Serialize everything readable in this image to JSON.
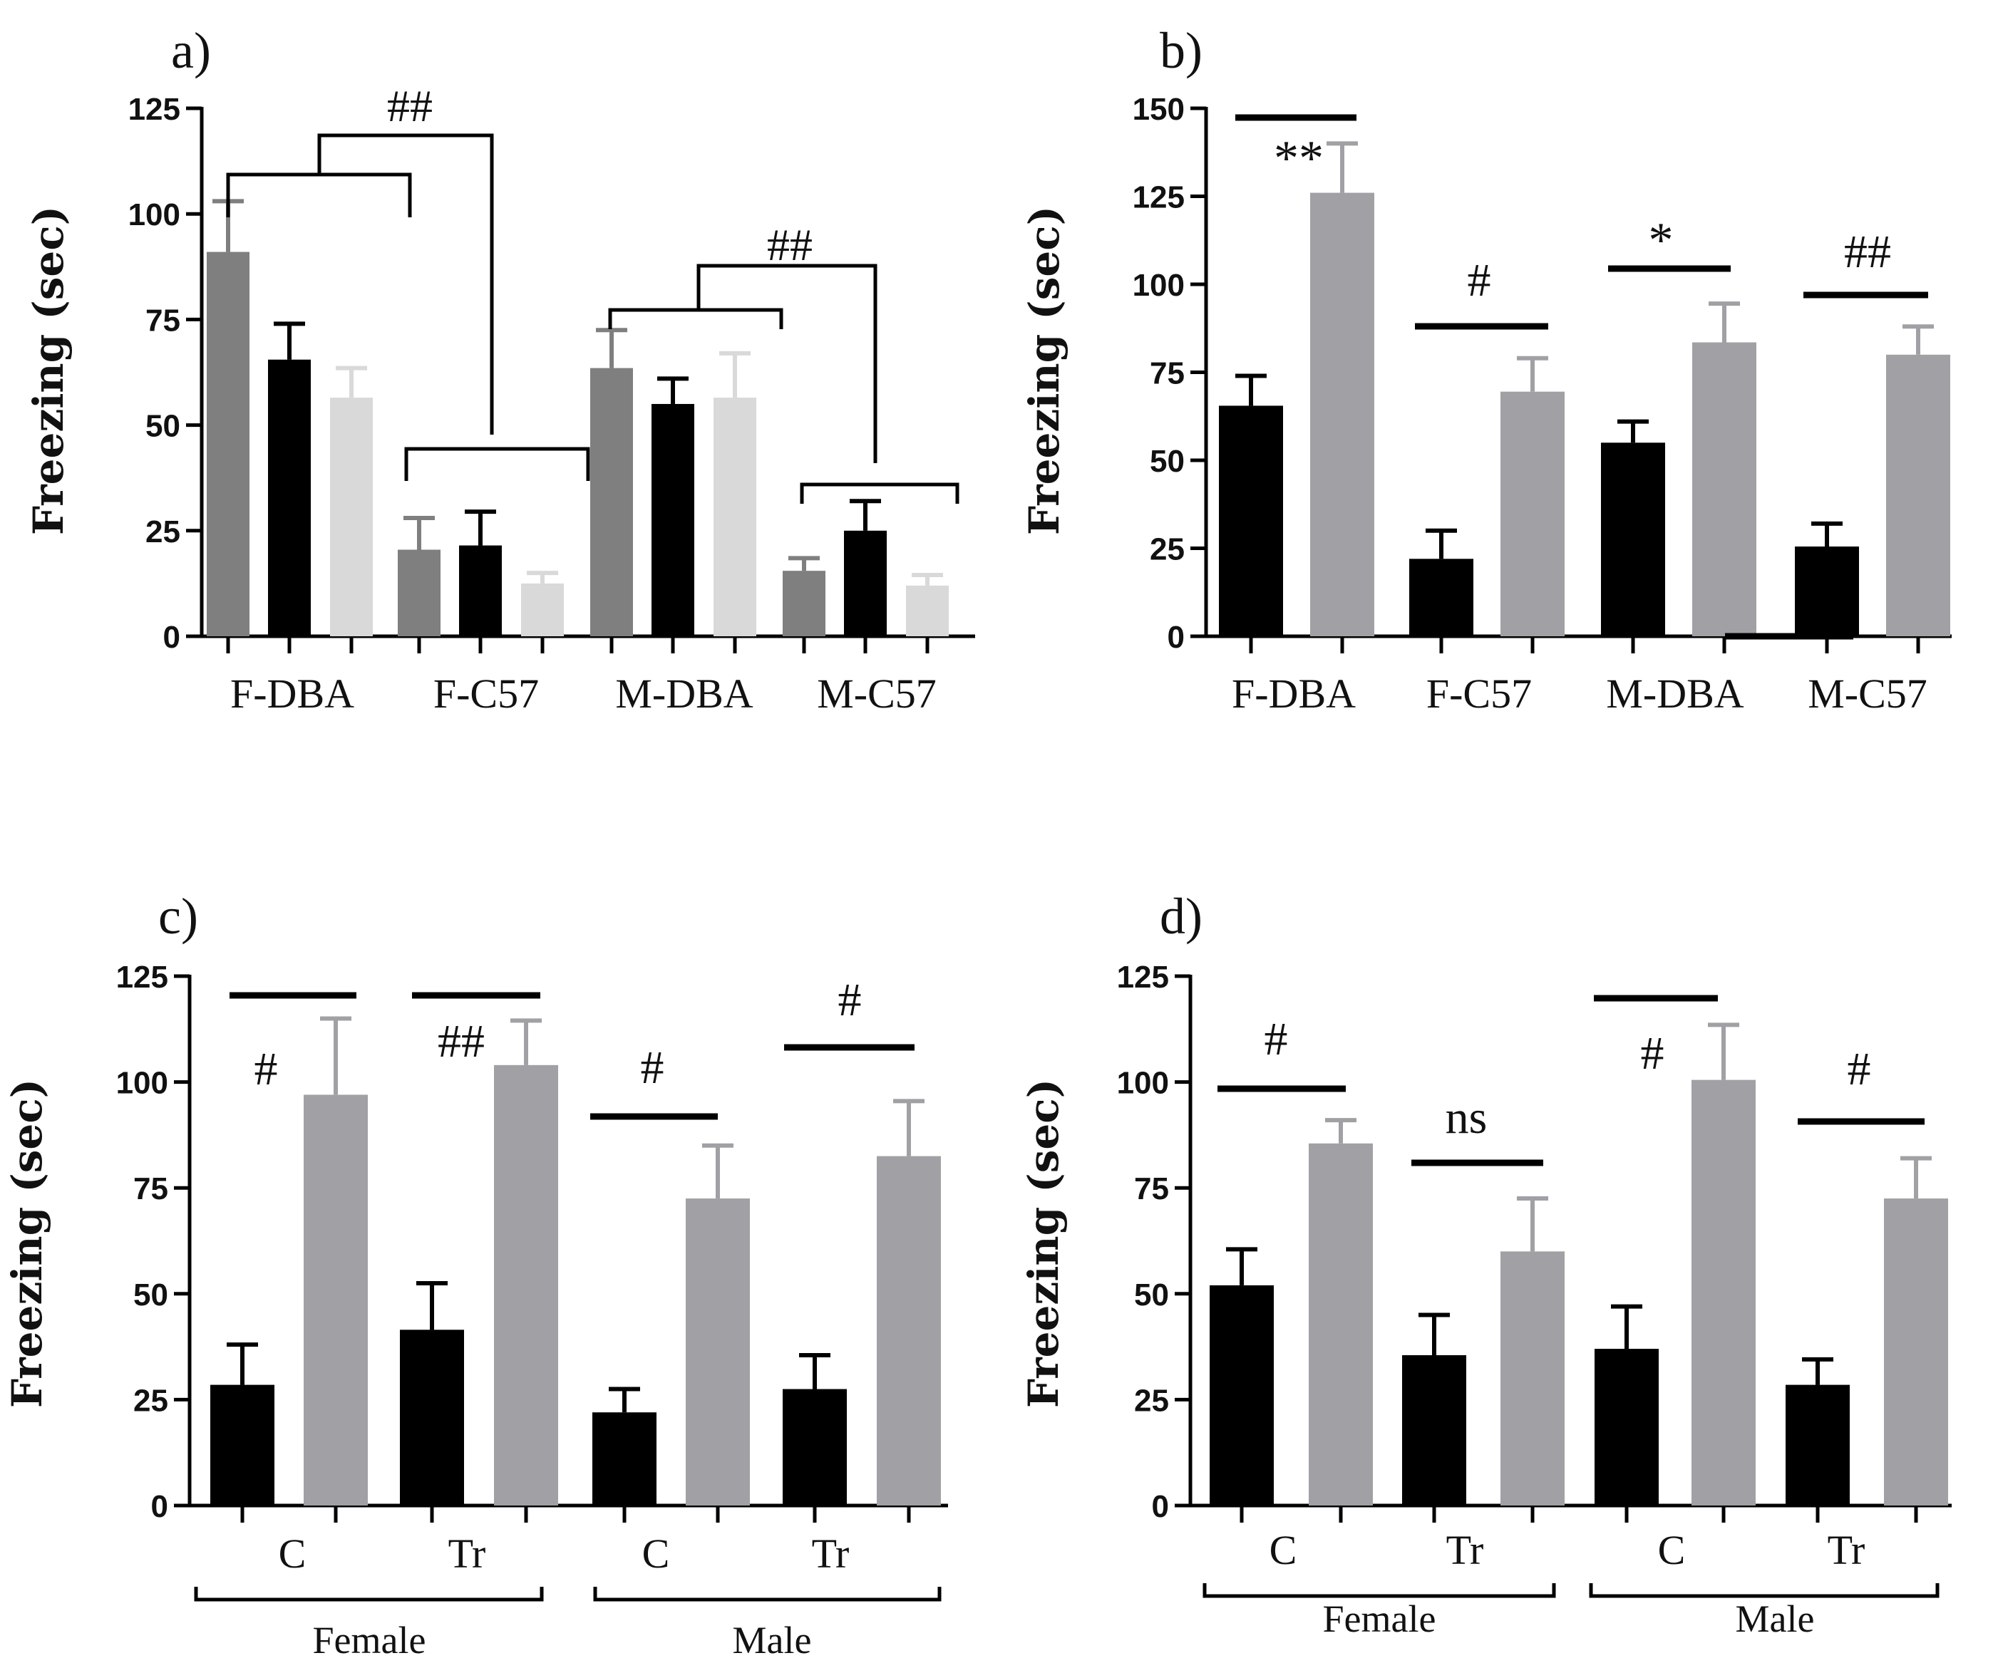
{
  "colors": {
    "black": "#000000",
    "gray": "#a1a0a5",
    "dark_gray": "#7f7f7f",
    "light_gray": "#d9d9d9"
  },
  "chart_data": [
    {
      "panel": "a)",
      "type": "bar",
      "ylabel": "Freezing (sec)",
      "ylim": [
        0,
        125
      ],
      "yticks": [
        0,
        25,
        50,
        75,
        100,
        125
      ],
      "categories": [
        "F-DBA",
        "F-C57",
        "M-DBA",
        "M-C57"
      ],
      "series": [
        {
          "name": "series-1",
          "color": "dark_gray",
          "values": [
            91,
            20.5,
            63.5,
            15.5
          ],
          "errors": [
            12,
            7.5,
            9,
            3
          ]
        },
        {
          "name": "series-2",
          "color": "black",
          "values": [
            65.5,
            21.5,
            55,
            25
          ],
          "errors": [
            8.5,
            8,
            6,
            7
          ]
        },
        {
          "name": "series-3",
          "color": "light_gray",
          "values": [
            56.5,
            12.5,
            56.5,
            12
          ],
          "errors": [
            7,
            2.5,
            10.5,
            2.5
          ]
        }
      ],
      "annotations": [
        "##",
        "##"
      ]
    },
    {
      "panel": "b)",
      "type": "bar",
      "ylabel": "Freezing (sec)",
      "ylim": [
        0,
        150
      ],
      "yticks": [
        0,
        25,
        50,
        75,
        100,
        125,
        150
      ],
      "categories": [
        "F-DBA",
        "F-C57",
        "M-DBA",
        "M-C57"
      ],
      "series": [
        {
          "name": "series-1",
          "color": "black",
          "values": [
            65.5,
            22,
            55,
            25.5
          ],
          "errors": [
            8.5,
            8,
            6,
            6.5
          ]
        },
        {
          "name": "series-2",
          "color": "gray",
          "values": [
            126,
            69.5,
            83.5,
            80
          ],
          "errors": [
            14,
            9.5,
            11,
            8
          ]
        }
      ],
      "annotations": [
        "**",
        "#",
        "*",
        "##"
      ]
    },
    {
      "panel": "c)",
      "type": "bar",
      "ylabel": "Freezing (sec)",
      "ylim": [
        0,
        125
      ],
      "yticks": [
        0,
        25,
        50,
        75,
        100,
        125
      ],
      "categories": [
        "C",
        "Tr",
        "C",
        "Tr"
      ],
      "groups": [
        "Female",
        "Male"
      ],
      "series": [
        {
          "name": "series-1",
          "color": "black",
          "values": [
            28.5,
            41.5,
            22,
            27.5
          ],
          "errors": [
            9.5,
            11,
            5.5,
            8
          ]
        },
        {
          "name": "series-2",
          "color": "gray",
          "values": [
            97,
            104,
            72.5,
            82.5
          ],
          "errors": [
            18,
            10.5,
            12.5,
            13
          ]
        }
      ],
      "annotations": [
        "#",
        "##",
        "#",
        "#"
      ]
    },
    {
      "panel": "d)",
      "type": "bar",
      "ylabel": "Freezing (sec)",
      "ylim": [
        0,
        125
      ],
      "yticks": [
        0,
        25,
        50,
        75,
        100,
        125
      ],
      "categories": [
        "C",
        "Tr",
        "C",
        "Tr"
      ],
      "groups": [
        "Female",
        "Male"
      ],
      "series": [
        {
          "name": "series-1",
          "color": "black",
          "values": [
            52,
            35.5,
            37,
            28.5
          ],
          "errors": [
            8.5,
            9.5,
            10,
            6
          ]
        },
        {
          "name": "series-2",
          "color": "gray",
          "values": [
            85.5,
            60,
            100.5,
            72.5
          ],
          "errors": [
            5.5,
            12.5,
            13,
            9.5
          ]
        }
      ],
      "annotations": [
        "#",
        "ns",
        "#",
        "#"
      ]
    }
  ]
}
